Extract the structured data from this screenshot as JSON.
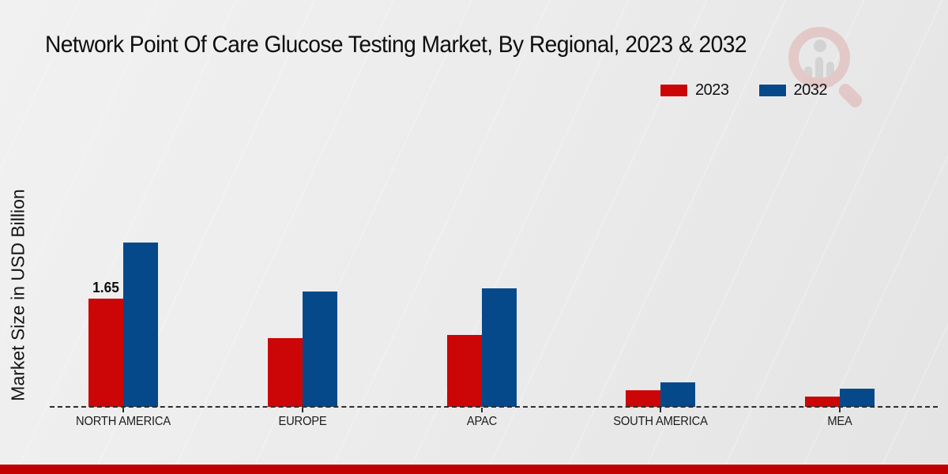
{
  "title": "Network Point Of Care Glucose Testing Market, By Regional, 2023 & 2032",
  "y_axis_label": "Market Size in USD Billion",
  "legend": {
    "items": [
      {
        "label": "2023",
        "color": "#cc0606"
      },
      {
        "label": "2032",
        "color": "#05498a"
      }
    ]
  },
  "watermark_icon": "magnifier-bar-chart-logo",
  "colors": {
    "bar_2023": "#cc0606",
    "bar_2032": "#05498a",
    "footer_band": "#c00000",
    "background": "#ececec",
    "baseline": "#2c2c2c"
  },
  "chart_data": {
    "type": "bar",
    "title": "Network Point Of Care Glucose Testing Market, By Regional, 2023 & 2032",
    "categories": [
      "NORTH AMERICA",
      "EUROPE",
      "APAC",
      "SOUTH AMERICA",
      "MEA"
    ],
    "series": [
      {
        "name": "2023",
        "color": "#cc0606",
        "values": [
          1.65,
          1.05,
          1.1,
          0.25,
          0.16
        ]
      },
      {
        "name": "2032",
        "color": "#05498a",
        "values": [
          2.5,
          1.76,
          1.81,
          0.37,
          0.28
        ]
      }
    ],
    "data_labels": [
      {
        "series": "2023",
        "category": "NORTH AMERICA",
        "text": "1.65"
      }
    ],
    "xlabel": "",
    "ylabel": "Market Size in USD Billion",
    "ylim": [
      0,
      2.9
    ],
    "grid": false,
    "baseline_style": "dashed",
    "legend_position": "top-right"
  },
  "footer": {}
}
